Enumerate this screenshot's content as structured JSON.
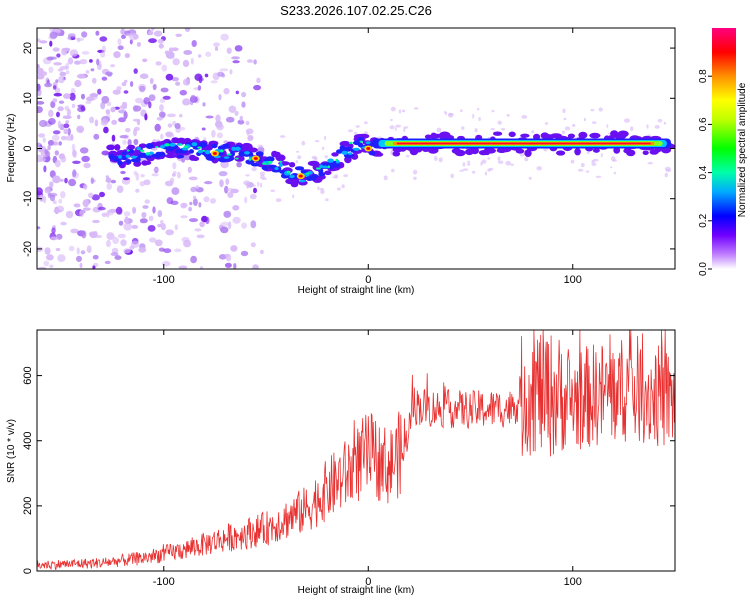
{
  "title": "S233.2026.107.02.25.C26",
  "chart_data": [
    {
      "type": "heatmap",
      "name": "spectrogram",
      "xlabel": "Height of straight line (km)",
      "ylabel": "Frequency (Hz)",
      "xlim": [
        -162,
        150
      ],
      "ylim": [
        -24,
        24
      ],
      "x_ticks": [
        -100,
        0,
        100
      ],
      "x_tick_labels": [
        "-100",
        "0",
        "100"
      ],
      "y_ticks": [
        -20,
        -10,
        0,
        10,
        20
      ],
      "y_tick_labels": [
        "-20",
        "-10",
        "0",
        "10",
        "20"
      ],
      "colorbar": {
        "label": "Normalized spectral amplitude",
        "range": [
          0,
          1
        ],
        "ticks": [
          0.0,
          0.2,
          0.4,
          0.6,
          0.8
        ],
        "tick_labels": [
          "0.0",
          "0.2",
          "0.4",
          "0.6",
          "0.8"
        ],
        "colors": [
          "#ffffff",
          "#c060ff",
          "#6000ff",
          "#0000ff",
          "#00c0ff",
          "#00ff80",
          "#40ff00",
          "#c0ff00",
          "#ffff00",
          "#ffa000",
          "#ff0000",
          "#ff0080"
        ]
      },
      "ridge": {
        "x": [
          -125,
          -110,
          -95,
          -80,
          -65,
          -55,
          -45,
          -35,
          -28,
          -20,
          -12,
          -5,
          0,
          5,
          15,
          30,
          60,
          90,
          120,
          148
        ],
        "freq": [
          -1.5,
          -1,
          0,
          -0.5,
          -1,
          -2,
          -3,
          -5.5,
          -5,
          -3.5,
          -1,
          1,
          0,
          0.5,
          1,
          1,
          1,
          1,
          1,
          1
        ]
      }
    },
    {
      "type": "line",
      "name": "snr",
      "xlabel": "Height of straight line (km)",
      "ylabel": "SNR (10 * v/v)",
      "xlim": [
        -162,
        150
      ],
      "ylim": [
        0,
        740
      ],
      "x_ticks": [
        -100,
        0,
        100
      ],
      "x_tick_labels": [
        "-100",
        "0",
        "100"
      ],
      "y_ticks": [
        0,
        200,
        400,
        600
      ],
      "y_tick_labels": [
        "0",
        "200",
        "400",
        "600"
      ],
      "color": "#e83030",
      "trend": {
        "x": [
          -162,
          -130,
          -110,
          -90,
          -70,
          -50,
          -30,
          -20,
          -10,
          0,
          10,
          18,
          22,
          30,
          50,
          70,
          80,
          90,
          100,
          110,
          130,
          150
        ],
        "y": [
          18,
          25,
          40,
          65,
          100,
          130,
          190,
          250,
          300,
          360,
          320,
          380,
          510,
          500,
          495,
          500,
          560,
          540,
          520,
          540,
          560,
          520
        ]
      }
    }
  ]
}
